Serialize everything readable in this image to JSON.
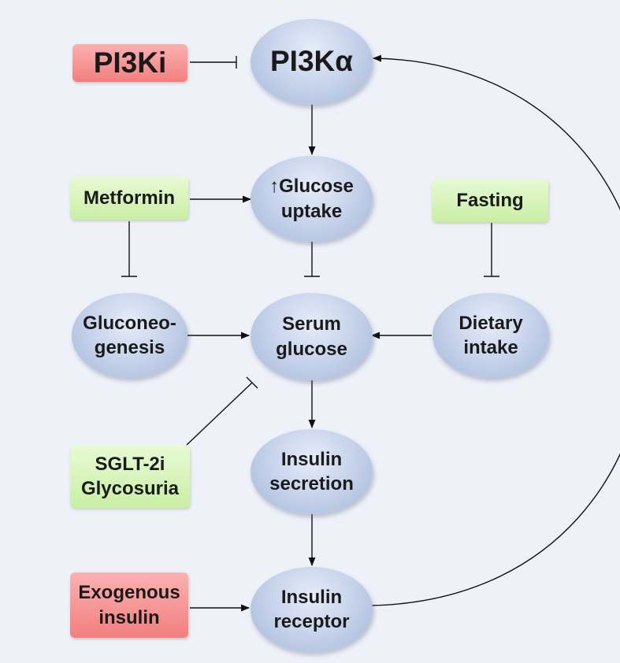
{
  "nodes": {
    "pi3ki": "PI3Ki",
    "pi3ka": "PI3Kα",
    "metformin": "Metformin",
    "glucose_uptake_arrow": "↑",
    "glucose_uptake": "Glucose\nuptake",
    "fasting": "Fasting",
    "gluconeogenesis": "Gluconeo-\ngenesis",
    "serum_glucose": "Serum\nglucose",
    "dietary_intake": "Dietary\nintake",
    "sglt2i": "SGLT-2i\nGlycosuria",
    "insulin_secretion": "Insulin\nsecretion",
    "exogenous_insulin": "Exogenous\ninsulin",
    "insulin_receptor": "Insulin\nreceptor"
  },
  "colors": {
    "inhibitor_red": "#f27f7f",
    "modulator_green": "#c9efa5",
    "process_blue": "#c9d5ec",
    "edge": "#111111"
  }
}
